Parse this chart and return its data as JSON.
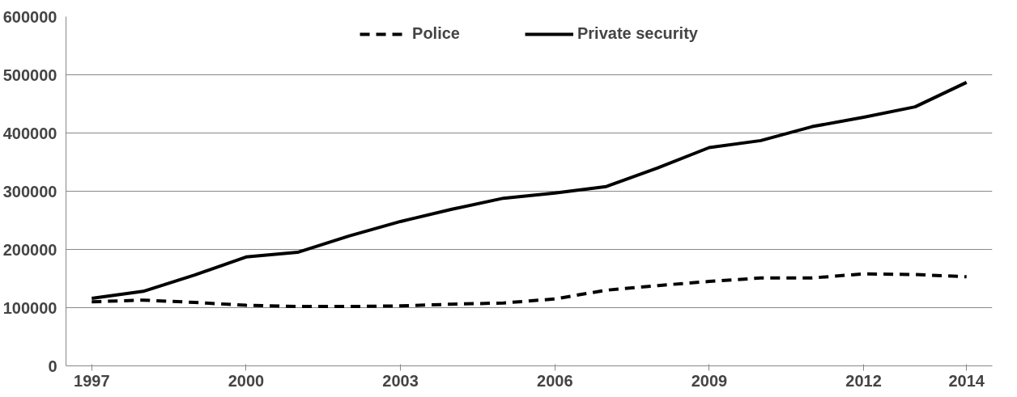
{
  "chart_data": {
    "type": "line",
    "categories": [
      "1997",
      null,
      null,
      "2000",
      null,
      null,
      "2003",
      null,
      null,
      "2006",
      null,
      null,
      "2009",
      null,
      null,
      "2012",
      null,
      "2014"
    ],
    "series": [
      {
        "name": "Police",
        "color": "#000000",
        "line_style": "dashed",
        "values": [
          110000,
          113000,
          109000,
          104000,
          102000,
          102000,
          103000,
          106000,
          108000,
          115000,
          130000,
          138000,
          145000,
          151000,
          151000,
          158000,
          157000,
          153000
        ]
      },
      {
        "name": "Private security",
        "color": "#000000",
        "line_style": "solid",
        "values": [
          116000,
          128000,
          156000,
          187000,
          195000,
          223000,
          248000,
          269000,
          288000,
          297000,
          308000,
          340000,
          375000,
          387000,
          411000,
          427000,
          445000,
          487000
        ]
      }
    ],
    "ylim": [
      0,
      600000
    ],
    "yticks": [
      0,
      100000,
      200000,
      300000,
      400000,
      500000,
      600000
    ],
    "grid": "y",
    "legend": "top"
  }
}
